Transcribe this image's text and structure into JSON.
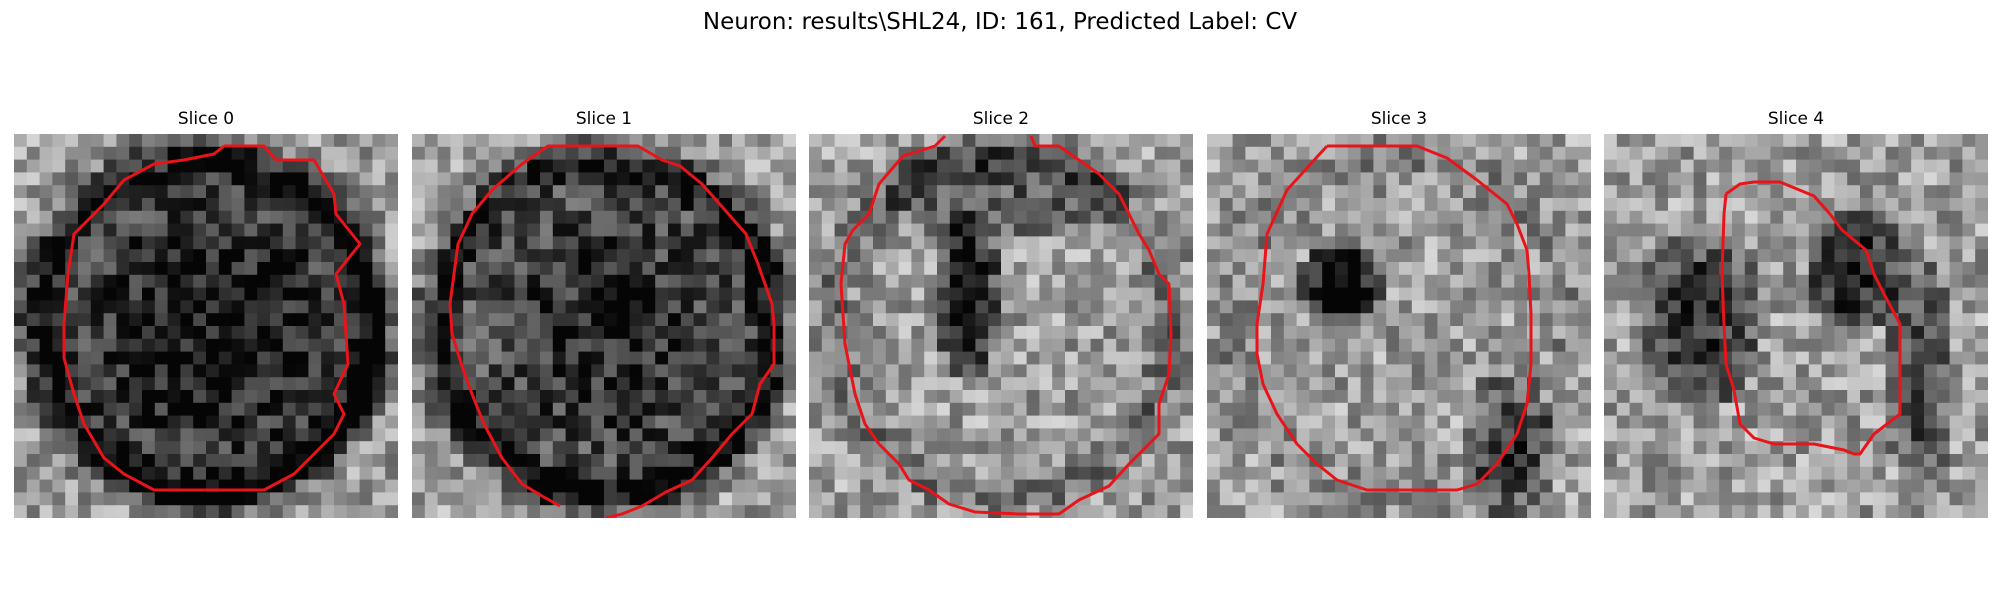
{
  "figure": {
    "title": "Neuron: results\\SHL24, ID: 161, Predicted Label: CV",
    "contour_color": "#e8141a",
    "colormap": "grayscale"
  },
  "slices": [
    {
      "label": "Slice 0"
    },
    {
      "label": "Slice 1"
    },
    {
      "label": "Slice 2"
    },
    {
      "label": "Slice 3"
    },
    {
      "label": "Slice 4"
    }
  ]
}
